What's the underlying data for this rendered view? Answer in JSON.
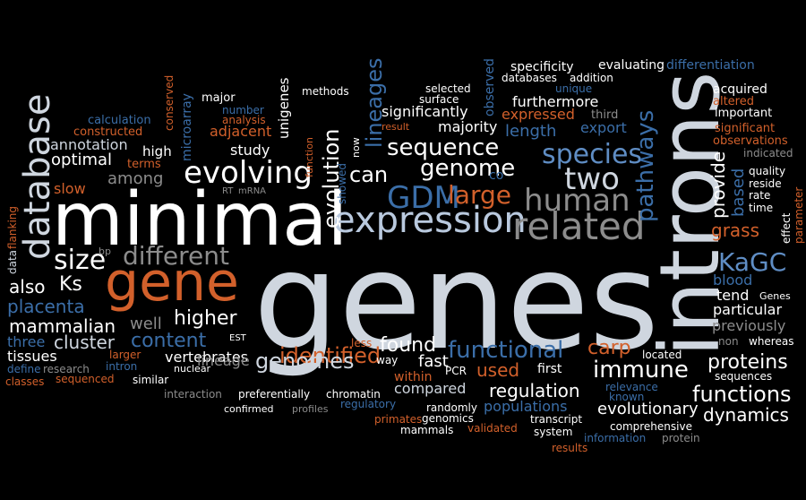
{
  "words": [
    "genes",
    "introns",
    "minimal",
    "gene",
    "expression",
    "related",
    "evolving",
    "database",
    "human",
    "two",
    "species",
    "genome",
    "GDM",
    "large",
    "sequence",
    "size",
    "different",
    "KaGC",
    "pathways",
    "lineages",
    "evolution",
    "can",
    "functional",
    "immune",
    "identified",
    "genomes",
    "functions",
    "regulation",
    "found",
    "content",
    "higher",
    "cluster",
    "mammalian",
    "placenta",
    "also",
    "Ks",
    "well",
    "carp",
    "dynamics",
    "proteins",
    "evolutionary",
    "used",
    "grass",
    "blood",
    "provide",
    "based",
    "slow",
    "optimal",
    "among",
    "annotation",
    "tissues",
    "three",
    "vertebrates",
    "lineage",
    "fast",
    "compared",
    "populations",
    "previously",
    "particular",
    "tend",
    "significantly",
    "length",
    "expressed",
    "export",
    "furthermore",
    "majority",
    "specificity",
    "evaluating",
    "differentiation",
    "acquired",
    "altered",
    "important",
    "significant",
    "observations",
    "indicated",
    "quality",
    "reside",
    "rate",
    "time",
    "effect",
    "parameter",
    "microarray",
    "conserved",
    "major",
    "number",
    "analysis",
    "adjacent",
    "calculation",
    "constructed",
    "study",
    "unigenes",
    "high",
    "terms",
    "methods",
    "selected",
    "observed",
    "databases",
    "addition",
    "unique",
    "surface",
    "third",
    "result",
    "now",
    "showed",
    "function",
    "RT",
    "mRNA",
    "co",
    "flanking",
    "data",
    "bp",
    "EST",
    "less",
    "larger",
    "intron",
    "research",
    "define",
    "classes",
    "sequenced",
    "similar",
    "nuclear",
    "interaction",
    "preferentially",
    "chromatin",
    "confirmed",
    "profiles",
    "regulatory",
    "way",
    "PCR",
    "within",
    "first",
    "relevance",
    "known",
    "located",
    "genomics",
    "primates",
    "mammals",
    "randomly",
    "validated",
    "transcript",
    "system",
    "information",
    "comprehensive",
    "protein",
    "results",
    "sequences",
    "non",
    "whereas",
    "Genes"
  ],
  "colors": {
    "background": "#000000",
    "white": "#ffffff",
    "light": "#cfd6df",
    "pale": "#b9c9de",
    "blue": "#3b6ea8",
    "light_blue": "#5f8dc4",
    "orange": "#d2602b",
    "gray": "#8c8c8c"
  }
}
